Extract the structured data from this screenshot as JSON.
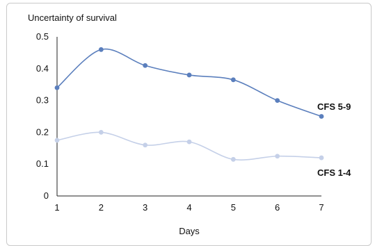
{
  "chart_data": {
    "type": "line",
    "ylabel": "Uncertainty of survival",
    "xlabel": "Days",
    "x": [
      1,
      2,
      3,
      4,
      5,
      6,
      7
    ],
    "ylim": [
      0,
      0.5
    ],
    "yticks": [
      "0",
      "0.1",
      "0.2",
      "0.3",
      "0.4",
      "0.5"
    ],
    "xticks": [
      "1",
      "2",
      "3",
      "4",
      "5",
      "6",
      "7"
    ],
    "grid": false,
    "series": [
      {
        "name": "CFS 5-9",
        "color": "#5b7fbd",
        "values": [
          0.34,
          0.46,
          0.41,
          0.38,
          0.365,
          0.3,
          0.25
        ]
      },
      {
        "name": "CFS 1-4",
        "color": "#c5d0e8",
        "values": [
          0.175,
          0.2,
          0.16,
          0.17,
          0.115,
          0.125,
          0.12
        ]
      }
    ]
  }
}
